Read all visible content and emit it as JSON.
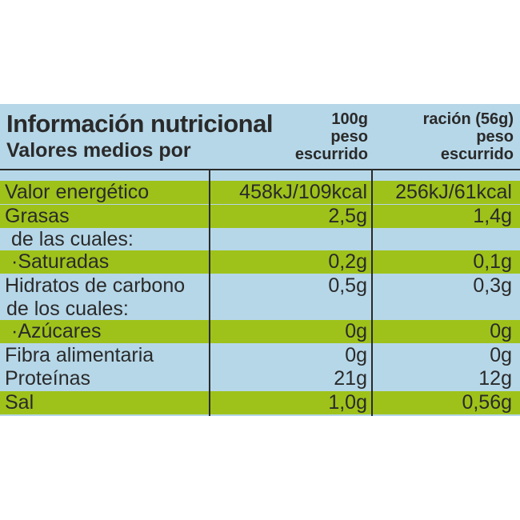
{
  "header": {
    "title": "Información nutricional",
    "subtitle": "Valores medios por",
    "col1": [
      "100g",
      "peso",
      "escurrido"
    ],
    "col2": [
      "ración (56g)",
      "peso",
      "escurrido"
    ]
  },
  "rows": [
    {
      "label": "Valor energético",
      "v1": "458kJ/109kcal",
      "v2": "256kJ/61kcal",
      "shaded": true
    },
    {
      "label": "Grasas",
      "v1": "2,5g",
      "v2": "1,4g",
      "shaded": true
    },
    {
      "label": "de las cuales:",
      "v1": "",
      "v2": "",
      "shaded": false
    },
    {
      "label": "·Saturadas",
      "v1": "0,2g",
      "v2": "0,1g",
      "shaded": true
    },
    {
      "label": "Hidratos de carbono",
      "v1": "0,5g",
      "v2": "0,3g",
      "shaded": false
    },
    {
      "label": "de los cuales:",
      "v1": "",
      "v2": "",
      "shaded": false
    },
    {
      "label": "·Azúcares",
      "v1": "0g",
      "v2": "0g",
      "shaded": true
    },
    {
      "label": "Fibra alimentaria",
      "v1": "0g",
      "v2": "0g",
      "shaded": false
    },
    {
      "label": "Proteínas",
      "v1": "21g",
      "v2": "12g",
      "shaded": false
    },
    {
      "label": "Sal",
      "v1": "1,0g",
      "v2": "0,56g",
      "shaded": true
    }
  ],
  "colors": {
    "panel": "#b6d7e8",
    "shaded_row": "#9ec21a",
    "text": "#2a2a2a"
  }
}
